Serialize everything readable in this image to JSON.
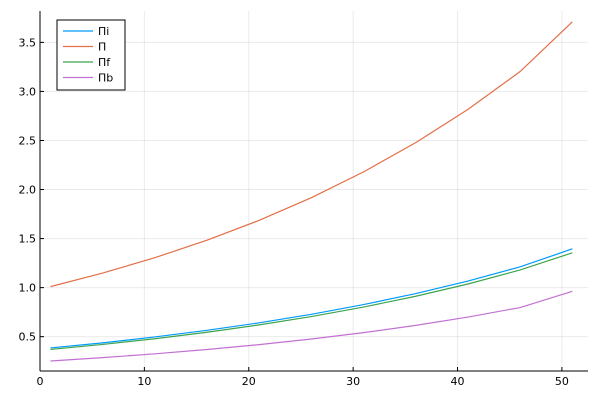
{
  "chart_data": {
    "type": "line",
    "title": "",
    "xlabel": "",
    "ylabel": "",
    "xlim": [
      0,
      52.5
    ],
    "ylim": [
      0.15,
      3.82
    ],
    "x_ticks": [
      0,
      10,
      20,
      30,
      40,
      50
    ],
    "y_ticks": [
      0.5,
      1.0,
      1.5,
      2.0,
      2.5,
      3.0,
      3.5
    ],
    "x_tick_labels": [
      "0",
      "10",
      "20",
      "30",
      "40",
      "50"
    ],
    "y_tick_labels": [
      "0.5",
      "1.0",
      "1.5",
      "2.0",
      "2.5",
      "3.0",
      "3.5"
    ],
    "grid": true,
    "legend": "top-left",
    "x": [
      1,
      6,
      11,
      16,
      21,
      26,
      31,
      36,
      41,
      46,
      51
    ],
    "series": [
      {
        "name": "Πi",
        "color": "#009AFA",
        "values": [
          0.385,
          0.437,
          0.497,
          0.565,
          0.641,
          0.728,
          0.827,
          0.939,
          1.067,
          1.212,
          1.395
        ]
      },
      {
        "name": "Π",
        "color": "#E36F47",
        "values": [
          1.01,
          1.148,
          1.305,
          1.483,
          1.686,
          1.917,
          2.18,
          2.478,
          2.817,
          3.203,
          3.71
        ]
      },
      {
        "name": "Πf",
        "color": "#3EA44E",
        "values": [
          0.37,
          0.421,
          0.479,
          0.545,
          0.62,
          0.705,
          0.802,
          0.912,
          1.037,
          1.18,
          1.355
        ]
      },
      {
        "name": "Πb",
        "color": "#C271D2",
        "values": [
          0.252,
          0.286,
          0.325,
          0.369,
          0.419,
          0.476,
          0.541,
          0.615,
          0.7,
          0.797,
          0.962
        ]
      }
    ]
  }
}
